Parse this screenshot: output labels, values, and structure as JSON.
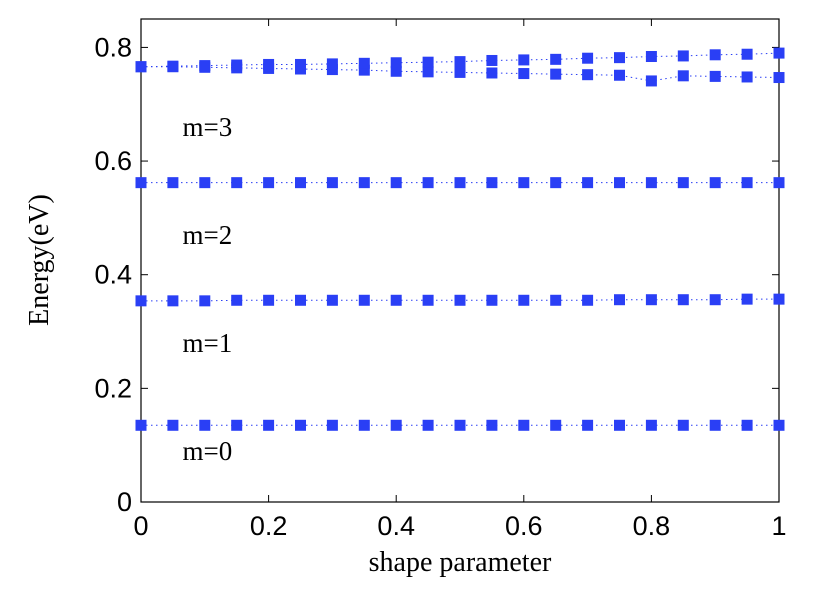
{
  "chart_data": {
    "type": "scatter",
    "title": "",
    "xlabel": "shape parameter",
    "ylabel": "Energy(eV)",
    "xlim": [
      0,
      1
    ],
    "ylim": [
      0,
      0.85
    ],
    "xticks": [
      0,
      0.2,
      0.4,
      0.6,
      0.8,
      1
    ],
    "yticks": [
      0,
      0.2,
      0.4,
      0.6,
      0.8
    ],
    "xtick_labels": [
      "0",
      "0.2",
      "0.4",
      "0.6",
      "0.8",
      "1"
    ],
    "ytick_labels": [
      "0",
      "0.2",
      "0.4",
      "0.6",
      "0.8"
    ],
    "grid": false,
    "marker": "square",
    "line_style": "dotted",
    "color": "#2a3ff5",
    "x": [
      0,
      0.05,
      0.1,
      0.15,
      0.2,
      0.25,
      0.3,
      0.35,
      0.4,
      0.45,
      0.5,
      0.55,
      0.6,
      0.65,
      0.7,
      0.75,
      0.8,
      0.85,
      0.9,
      0.95,
      1.0
    ],
    "series": [
      {
        "values": [
          0.135,
          0.135,
          0.135,
          0.135,
          0.135,
          0.135,
          0.135,
          0.135,
          0.135,
          0.135,
          0.135,
          0.135,
          0.135,
          0.135,
          0.135,
          0.135,
          0.135,
          0.135,
          0.135,
          0.135,
          0.135
        ]
      },
      {
        "values": [
          0.354,
          0.354,
          0.354,
          0.355,
          0.355,
          0.355,
          0.355,
          0.355,
          0.355,
          0.355,
          0.355,
          0.355,
          0.355,
          0.355,
          0.355,
          0.356,
          0.356,
          0.356,
          0.356,
          0.357,
          0.357
        ]
      },
      {
        "values": [
          0.562,
          0.562,
          0.562,
          0.562,
          0.562,
          0.562,
          0.562,
          0.562,
          0.562,
          0.562,
          0.562,
          0.562,
          0.562,
          0.562,
          0.562,
          0.562,
          0.562,
          0.562,
          0.562,
          0.562,
          0.562
        ]
      },
      {
        "values": [
          0.766,
          0.766,
          0.765,
          0.764,
          0.763,
          0.762,
          0.761,
          0.76,
          0.758,
          0.757,
          0.756,
          0.755,
          0.754,
          0.753,
          0.752,
          0.751,
          0.741,
          0.75,
          0.749,
          0.748,
          0.747
        ]
      },
      {
        "values": [
          0.766,
          0.767,
          0.768,
          0.769,
          0.77,
          0.77,
          0.771,
          0.772,
          0.773,
          0.774,
          0.775,
          0.777,
          0.778,
          0.779,
          0.781,
          0.782,
          0.784,
          0.785,
          0.787,
          0.788,
          0.79
        ]
      }
    ],
    "annotations": [
      {
        "text": "m=0",
        "x": 0.065,
        "y": 0.09
      },
      {
        "text": "m=1",
        "x": 0.065,
        "y": 0.28
      },
      {
        "text": "m=2",
        "x": 0.065,
        "y": 0.47
      },
      {
        "text": "m=3",
        "x": 0.065,
        "y": 0.66
      }
    ]
  }
}
